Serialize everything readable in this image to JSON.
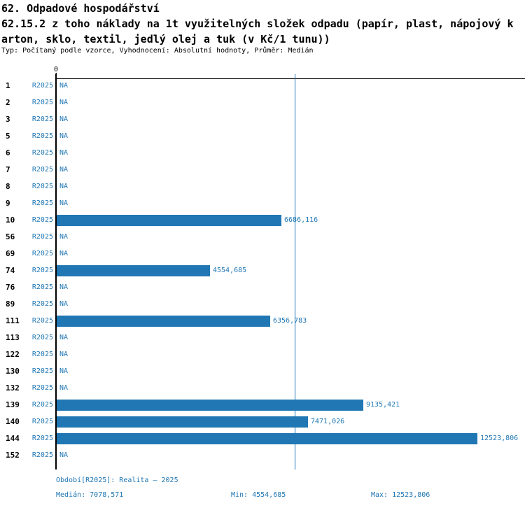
{
  "header": {
    "title": "62. Odpadové hospodářství",
    "subtitle_line1": "62.15.2 z toho náklady na 1t využitelných složek odpadu (papír, plast, nápojový k",
    "subtitle_line2": "arton, sklo, textil, jedlý olej a tuk (v Kč/1 tunu))",
    "type_line": "Typ: Počítaný podle vzorce, Vyhodnocení: Absolutní hodnoty, Průměr: Medián"
  },
  "chart_data": {
    "type": "bar",
    "orientation": "horizontal",
    "title": "62.15.2 z toho náklady na 1t využitelných složek odpadu (papír, plast, nápojový karton, sklo, textil, jedlý olej a tuk (v Kč/1 tunu))",
    "xlabel": "",
    "ylabel": "",
    "xlim": [
      0,
      12523.806
    ],
    "zero_tick_label": "0",
    "grid": false,
    "median_value": 7078.571,
    "na_label": "NA",
    "period_label": "R2025",
    "categories": [
      "1",
      "2",
      "3",
      "5",
      "6",
      "7",
      "8",
      "9",
      "10",
      "56",
      "69",
      "74",
      "76",
      "89",
      "111",
      "113",
      "122",
      "130",
      "132",
      "139",
      "140",
      "144",
      "152"
    ],
    "values": [
      null,
      null,
      null,
      null,
      null,
      null,
      null,
      null,
      6686.116,
      null,
      null,
      4554.685,
      null,
      null,
      6356.783,
      null,
      null,
      null,
      null,
      9135.421,
      7471.026,
      12523.806,
      null
    ],
    "rows": [
      {
        "id": "1",
        "period": "R2025",
        "value": null,
        "label": "NA"
      },
      {
        "id": "2",
        "period": "R2025",
        "value": null,
        "label": "NA"
      },
      {
        "id": "3",
        "period": "R2025",
        "value": null,
        "label": "NA"
      },
      {
        "id": "5",
        "period": "R2025",
        "value": null,
        "label": "NA"
      },
      {
        "id": "6",
        "period": "R2025",
        "value": null,
        "label": "NA"
      },
      {
        "id": "7",
        "period": "R2025",
        "value": null,
        "label": "NA"
      },
      {
        "id": "8",
        "period": "R2025",
        "value": null,
        "label": "NA"
      },
      {
        "id": "9",
        "period": "R2025",
        "value": null,
        "label": "NA"
      },
      {
        "id": "10",
        "period": "R2025",
        "value": 6686.116,
        "label": "6686,116"
      },
      {
        "id": "56",
        "period": "R2025",
        "value": null,
        "label": "NA"
      },
      {
        "id": "69",
        "period": "R2025",
        "value": null,
        "label": "NA"
      },
      {
        "id": "74",
        "period": "R2025",
        "value": 4554.685,
        "label": "4554,685"
      },
      {
        "id": "76",
        "period": "R2025",
        "value": null,
        "label": "NA"
      },
      {
        "id": "89",
        "period": "R2025",
        "value": null,
        "label": "NA"
      },
      {
        "id": "111",
        "period": "R2025",
        "value": 6356.783,
        "label": "6356,783"
      },
      {
        "id": "113",
        "period": "R2025",
        "value": null,
        "label": "NA"
      },
      {
        "id": "122",
        "period": "R2025",
        "value": null,
        "label": "NA"
      },
      {
        "id": "130",
        "period": "R2025",
        "value": null,
        "label": "NA"
      },
      {
        "id": "132",
        "period": "R2025",
        "value": null,
        "label": "NA"
      },
      {
        "id": "139",
        "period": "R2025",
        "value": 9135.421,
        "label": "9135,421"
      },
      {
        "id": "140",
        "period": "R2025",
        "value": 7471.026,
        "label": "7471,026"
      },
      {
        "id": "144",
        "period": "R2025",
        "value": 12523.806,
        "label": "12523,806"
      },
      {
        "id": "152",
        "period": "R2025",
        "value": null,
        "label": "NA"
      }
    ],
    "colors": {
      "bar": "#2077b4",
      "median_line": "#2077b4",
      "text_blue": "#2077b4",
      "axis": "#000000",
      "title_text": "#000000",
      "background": "#ffffff"
    }
  },
  "footer": {
    "period_line": "Období[R2025]: Realita – 2025",
    "median": "Medián: 7078,571",
    "min": "Min: 4554,685",
    "max": "Max: 12523,806"
  }
}
